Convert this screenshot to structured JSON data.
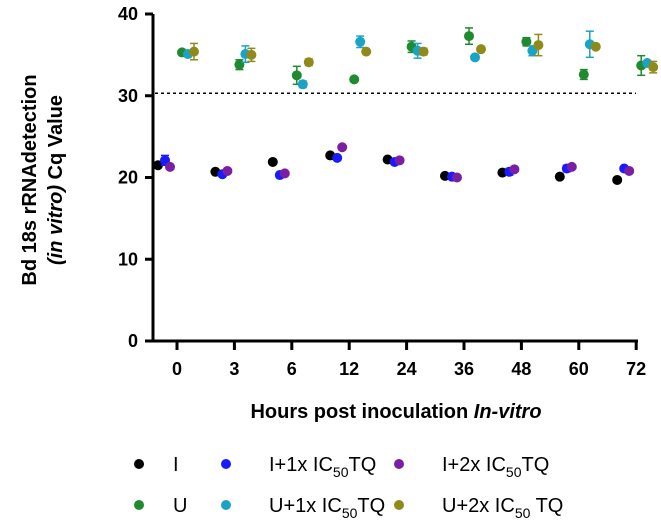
{
  "chart_data": {
    "type": "scatter",
    "title": "",
    "xlabel": {
      "text": "Hours post inoculation ",
      "italic": "In-vitro"
    },
    "ylabel": {
      "line1": "Bd 18s rRNAdetection",
      "line2_italic": "(in vitro)",
      "line2_rest": " Cq Value"
    },
    "categories": [
      "0",
      "3",
      "6",
      "12",
      "24",
      "36",
      "48",
      "60",
      "72"
    ],
    "ylim": [
      0,
      40
    ],
    "yticks": [
      "0",
      "10",
      "20",
      "30",
      "40"
    ],
    "threshold": 30.3,
    "series": [
      {
        "name": "I",
        "color": "#000000",
        "values": [
          21.5,
          20.7,
          21.9,
          22.7,
          22.2,
          20.2,
          20.6,
          20.1,
          19.7
        ],
        "errors": [
          0.3,
          0.2,
          0.3,
          0.2,
          0.2,
          0.2,
          0.2,
          0.2,
          0.2
        ]
      },
      {
        "name": "I+1x IC50TQ",
        "color": "#1a1aff",
        "values": [
          22.1,
          20.4,
          20.3,
          22.4,
          21.9,
          20.1,
          20.7,
          21.1,
          21.1
        ],
        "errors": [
          0.6,
          0.3,
          0.3,
          0.3,
          0.3,
          0.3,
          0.4,
          0.4,
          0.3
        ]
      },
      {
        "name": "I+2x IC50TQ",
        "color": "#7b1fa2",
        "values": [
          21.3,
          20.8,
          20.5,
          23.7,
          22.1,
          20.0,
          21.0,
          21.3,
          20.8
        ],
        "errors": [
          0.2,
          0.2,
          0.2,
          0.2,
          0.2,
          0.2,
          0.2,
          0.2,
          0.2
        ]
      },
      {
        "name": "U",
        "color": "#1f8a2e",
        "values": [
          35.3,
          33.8,
          32.5,
          32.0,
          36.0,
          37.3,
          36.6,
          32.6,
          33.7
        ],
        "errors": [
          0.2,
          0.6,
          1.1,
          0.2,
          0.7,
          1.0,
          0.5,
          0.6,
          1.2
        ]
      },
      {
        "name": "U+1x IC50TQ",
        "color": "#1ba3c6",
        "values": [
          35.1,
          35.1,
          31.4,
          36.6,
          35.5,
          34.7,
          35.5,
          36.3,
          34.0
        ],
        "errors": [
          0.2,
          1.0,
          0.4,
          0.7,
          0.9,
          0.2,
          0.6,
          1.6,
          0.2
        ]
      },
      {
        "name": "U+2x IC50 TQ",
        "color": "#8f8a1a",
        "values": [
          35.4,
          35.0,
          34.1,
          35.4,
          35.4,
          35.7,
          36.2,
          36.0,
          33.5
        ],
        "errors": [
          1.0,
          0.8,
          0.4,
          0.3,
          0.4,
          0.2,
          1.3,
          0.3,
          0.7
        ]
      }
    ],
    "legend": {
      "placement": "bottom",
      "entries": [
        {
          "label": "I",
          "color": "#000000"
        },
        {
          "label_pre": "I+1x IC",
          "label_sub": "50",
          "label_post": "TQ",
          "color": "#1a1aff"
        },
        {
          "label_pre": "I+2x IC",
          "label_sub": "50",
          "label_post": "TQ",
          "color": "#7b1fa2"
        },
        {
          "label": "U",
          "color": "#1f8a2e"
        },
        {
          "label_pre": "U+1x IC",
          "label_sub": "50",
          "label_post": "TQ",
          "color": "#1ba3c6"
        },
        {
          "label_pre": "U+2x IC",
          "label_sub": "50",
          "label_post": " TQ",
          "color": "#8f8a1a"
        }
      ]
    }
  }
}
